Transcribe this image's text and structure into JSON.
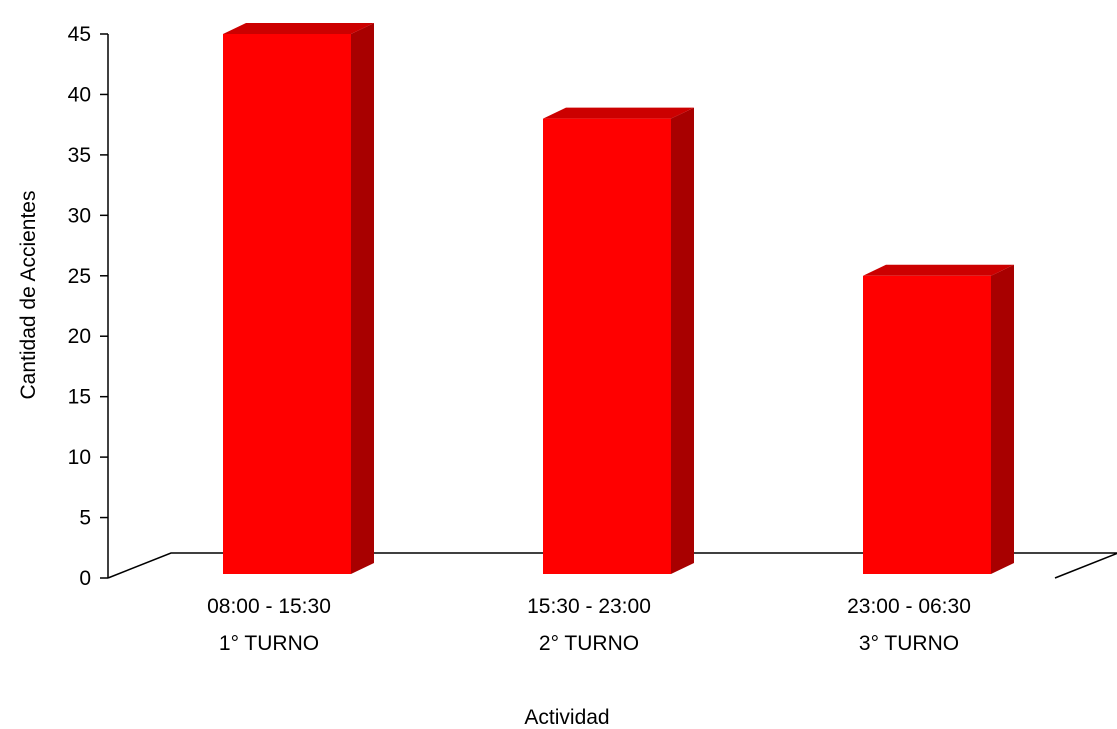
{
  "chart_data": {
    "type": "bar",
    "style": "3d",
    "categories": [
      {
        "line1": "08:00 - 15:30",
        "line2": "1° TURNO"
      },
      {
        "line1": "15:30 - 23:00",
        "line2": "2° TURNO"
      },
      {
        "line1": "23:00 - 06:30",
        "line2": "3° TURNO"
      }
    ],
    "values": [
      45,
      38,
      25
    ],
    "xlabel": "Actividad",
    "ylabel": "Cantidad de Accientes",
    "ylim": [
      0,
      45
    ],
    "yticks": [
      "0",
      "5",
      "10",
      "15",
      "20",
      "25",
      "30",
      "35",
      "40",
      "45"
    ],
    "grid": false,
    "colors": {
      "bar_front": "#ff0000",
      "bar_side": "#a80000",
      "bar_top": "#cc0000",
      "axis": "#000000"
    }
  }
}
